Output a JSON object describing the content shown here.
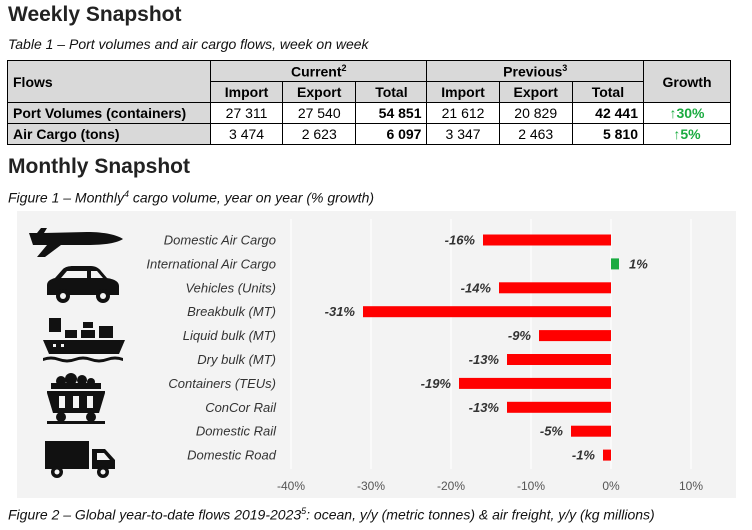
{
  "weekly": {
    "title": "Weekly Snapshot",
    "caption": "Table 1 – Port volumes and air cargo flows, week on week",
    "table": {
      "flows_header": "Flows",
      "current_header": "Current",
      "current_sup": "2",
      "previous_header": "Previous",
      "previous_sup": "3",
      "growth_header": "Growth",
      "sub_headers": [
        "Import",
        "Export",
        "Total",
        "Import",
        "Export",
        "Total"
      ],
      "rows": [
        {
          "label": "Port Volumes (containers)",
          "cur_import": "27 311",
          "cur_export": "27 540",
          "cur_total": "54 851",
          "prev_import": "21 612",
          "prev_export": "20 829",
          "prev_total": "42 441",
          "growth": "30%",
          "growth_arrow": "↑"
        },
        {
          "label": "Air Cargo (tons)",
          "cur_import": "3 474",
          "cur_export": "2 623",
          "cur_total": "6 097",
          "prev_import": "3 347",
          "prev_export": "2 463",
          "prev_total": "5 810",
          "growth": "5%",
          "growth_arrow": "↑"
        }
      ],
      "growth_color": "#1aab40"
    }
  },
  "monthly": {
    "title": "Monthly Snapshot",
    "caption_pre": "Figure 1 – Monthly",
    "caption_sup": "4",
    "caption_post": " cargo volume, year on year (% growth)"
  },
  "figure2": {
    "caption_pre": "Figure 2 – Global year-to-date flows 2019-2023",
    "caption_sup": "5",
    "caption_post": ": ocean, y/y (metric tonnes) & air freight, y/y (kg millions)"
  },
  "icons": [
    "airplane-icon",
    "car-icon",
    "ship-icon",
    "coal-wagon-icon",
    "truck-icon"
  ],
  "chart_data": {
    "type": "bar",
    "orientation": "horizontal",
    "categories": [
      "Domestic Air Cargo",
      "International Air Cargo",
      "Vehicles (Units)",
      "Breakbulk (MT)",
      "Liquid bulk (MT)",
      "Dry bulk (MT)",
      "Containers (TEUs)",
      "ConCor Rail",
      "Domestic Rail",
      "Domestic Road"
    ],
    "values": [
      -16,
      1,
      -14,
      -31,
      -9,
      -13,
      -19,
      -13,
      -5,
      -1
    ],
    "data_labels": [
      "-16%",
      "1%",
      "-14%",
      "-31%",
      "-9%",
      "-13%",
      "-19%",
      "-13%",
      "-5%",
      "-1%"
    ],
    "xlim": [
      -40,
      10
    ],
    "xticks": [
      -40,
      -30,
      -20,
      -10,
      0,
      10
    ],
    "xtick_labels": [
      "-40%",
      "-30%",
      "-20%",
      "-10%",
      "0%",
      "10%"
    ],
    "grid": "vertical",
    "negative_color": "#ff0000",
    "positive_color": "#1aab40"
  }
}
